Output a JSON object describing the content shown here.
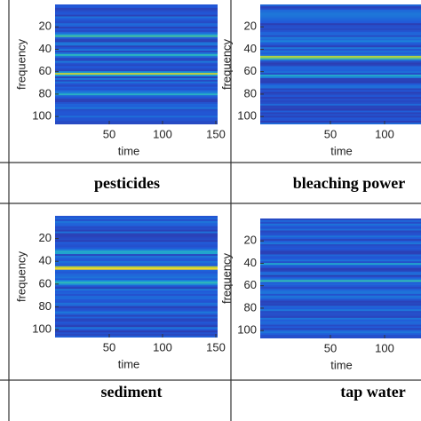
{
  "chart_data": [
    {
      "type": "heatmap",
      "caption": "pesticides",
      "xlabel": "time",
      "ylabel": "frequency",
      "xlim": [
        0,
        150
      ],
      "ylim": [
        0,
        107
      ],
      "xticks": [
        50,
        100,
        150
      ],
      "yticks": [
        20,
        40,
        60,
        80,
        100
      ]
    },
    {
      "type": "heatmap",
      "caption": "bleaching power",
      "xlabel": "time",
      "ylabel": "frequency",
      "xlim": [
        0,
        150
      ],
      "ylim": [
        0,
        107
      ],
      "xticks": [
        50,
        100
      ],
      "yticks": [
        20,
        40,
        60,
        80,
        100
      ]
    },
    {
      "type": "heatmap",
      "caption": "sediment",
      "xlabel": "time",
      "ylabel": "frequency",
      "xlim": [
        0,
        150
      ],
      "ylim": [
        0,
        107
      ],
      "xticks": [
        50,
        100,
        150
      ],
      "yticks": [
        20,
        40,
        60,
        80,
        100
      ]
    },
    {
      "type": "heatmap",
      "caption": "tap water",
      "xlabel": "time",
      "ylabel": "frequency",
      "xlim": [
        0,
        150
      ],
      "ylim": [
        0,
        107
      ],
      "xticks": [
        50,
        100
      ],
      "yticks": [
        20,
        40,
        60,
        80,
        100
      ]
    }
  ]
}
